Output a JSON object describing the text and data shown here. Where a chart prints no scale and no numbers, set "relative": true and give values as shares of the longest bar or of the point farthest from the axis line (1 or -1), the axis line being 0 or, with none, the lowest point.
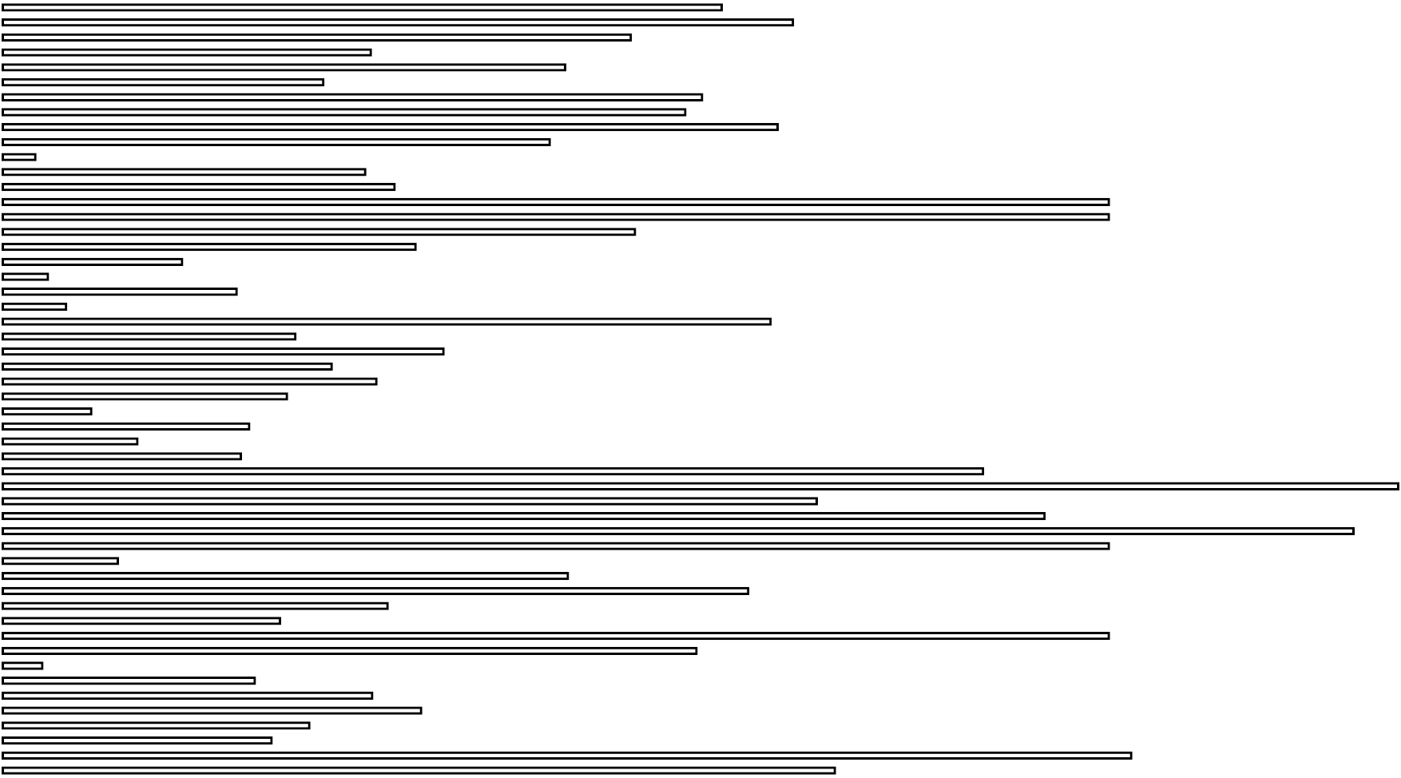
{
  "chart_data": {
    "type": "bar",
    "orientation": "horizontal",
    "relative": true,
    "color": "#000000",
    "categories": [
      null,
      null,
      null,
      null,
      null,
      null,
      null,
      null,
      null,
      null,
      null,
      null,
      null,
      null,
      null,
      null,
      null,
      null,
      null,
      null,
      null,
      null,
      null,
      null,
      null,
      null,
      null,
      null,
      null,
      null,
      null,
      null,
      null,
      null,
      null,
      null,
      null,
      null,
      null,
      null,
      null,
      null,
      null,
      null,
      null,
      null,
      null,
      null,
      null,
      null,
      null,
      null
    ],
    "values": [
      0.516,
      0.567,
      0.451,
      0.265,
      0.404,
      0.231,
      0.502,
      0.49,
      0.556,
      0.393,
      0.025,
      0.261,
      0.282,
      0.793,
      0.793,
      0.454,
      0.297,
      0.13,
      0.034,
      0.169,
      0.047,
      0.551,
      0.211,
      0.317,
      0.237,
      0.269,
      0.205,
      0.065,
      0.178,
      0.098,
      0.172,
      0.703,
      1,
      0.584,
      0.747,
      0.968,
      0.793,
      0.084,
      0.406,
      0.535,
      0.277,
      0.2,
      0.793,
      0.498,
      0.03,
      0.182,
      0.266,
      0.301,
      0.221,
      0.194,
      0.809,
      0.597
    ]
  }
}
